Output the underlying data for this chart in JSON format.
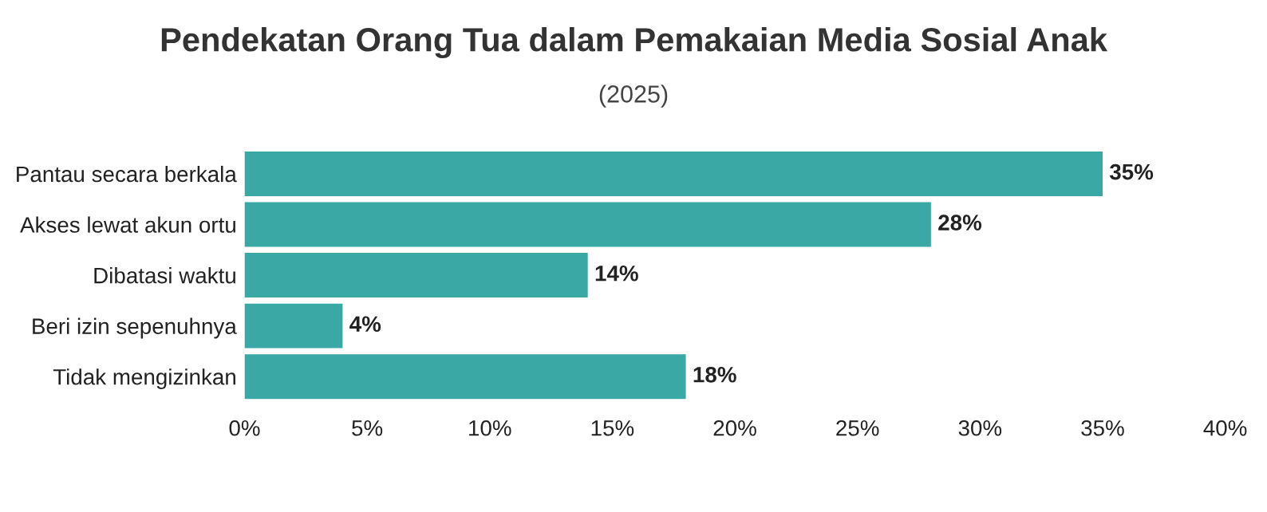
{
  "chart_data": {
    "type": "bar",
    "orientation": "horizontal",
    "title": "Pendekatan Orang Tua dalam Pemakaian Media Sosial Anak",
    "subtitle": "(2025)",
    "categories": [
      "Pantau secara berkala",
      "Akses lewat akun ortu",
      "Dibatasi waktu",
      "Beri izin sepenuhnya",
      "Tidak mengizinkan"
    ],
    "values": [
      35,
      28,
      14,
      4,
      18
    ],
    "value_labels": [
      "35%",
      "28%",
      "14%",
      "4%",
      "18%"
    ],
    "color": "#3aa8a4",
    "xlim": [
      0,
      40
    ],
    "xticks": [
      {
        "value": 0,
        "label": "0%"
      },
      {
        "value": 5,
        "label": "5%"
      },
      {
        "value": 10,
        "label": "10%"
      },
      {
        "value": 15,
        "label": "15%"
      },
      {
        "value": 20,
        "label": "20%"
      },
      {
        "value": 25,
        "label": "25%"
      },
      {
        "value": 30,
        "label": "30%"
      },
      {
        "value": 35,
        "label": "35%"
      },
      {
        "value": 40,
        "label": "40%"
      }
    ],
    "grid": false,
    "legend": false
  }
}
